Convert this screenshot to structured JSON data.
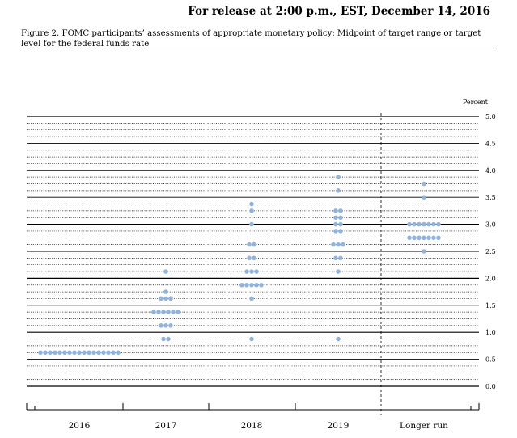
{
  "release_note": "For release at 2:00 p.m., EST, December 14, 2016",
  "figure_caption": "Figure 2. FOMC participants’ assessments of appropriate monetary policy: Midpoint of target range or target level for the federal funds rate",
  "chart_data": {
    "type": "scatter",
    "style": "dot plot",
    "ylabel": "Percent",
    "ylim": [
      0,
      5.0
    ],
    "y_ticks": [
      "0.0",
      "0.5",
      "1.0",
      "1.5",
      "2.0",
      "2.5",
      "3.0",
      "3.5",
      "4.0",
      "4.5",
      "5.0"
    ],
    "categories": [
      "2016",
      "2017",
      "2018",
      "2019",
      "Longer run"
    ],
    "dot_color": "#92b4dc",
    "grid": "solid at whole and half percents, dotted at eighth-point levels",
    "separator": "vertical dashed line before Longer run",
    "series": [
      {
        "values": [
          {
            "category": "2016",
            "y": 0.625,
            "count": 17
          },
          {
            "category": "2017",
            "y": 0.875,
            "count": 2
          },
          {
            "category": "2017",
            "y": 1.125,
            "count": 3
          },
          {
            "category": "2017",
            "y": 1.375,
            "count": 6
          },
          {
            "category": "2017",
            "y": 1.625,
            "count": 3
          },
          {
            "category": "2017",
            "y": 1.75,
            "count": 1
          },
          {
            "category": "2017",
            "y": 2.125,
            "count": 1
          },
          {
            "category": "2018",
            "y": 0.875,
            "count": 1
          },
          {
            "category": "2018",
            "y": 1.625,
            "count": 1
          },
          {
            "category": "2018",
            "y": 1.875,
            "count": 5
          },
          {
            "category": "2018",
            "y": 2.125,
            "count": 3
          },
          {
            "category": "2018",
            "y": 2.375,
            "count": 2
          },
          {
            "category": "2018",
            "y": 2.625,
            "count": 2
          },
          {
            "category": "2018",
            "y": 3.0,
            "count": 1
          },
          {
            "category": "2018",
            "y": 3.25,
            "count": 1
          },
          {
            "category": "2018",
            "y": 3.375,
            "count": 1
          },
          {
            "category": "2019",
            "y": 0.875,
            "count": 1
          },
          {
            "category": "2019",
            "y": 2.125,
            "count": 1
          },
          {
            "category": "2019",
            "y": 2.375,
            "count": 2
          },
          {
            "category": "2019",
            "y": 2.625,
            "count": 3
          },
          {
            "category": "2019",
            "y": 2.875,
            "count": 2
          },
          {
            "category": "2019",
            "y": 3.0,
            "count": 2
          },
          {
            "category": "2019",
            "y": 3.125,
            "count": 2
          },
          {
            "category": "2019",
            "y": 3.25,
            "count": 2
          },
          {
            "category": "2019",
            "y": 3.625,
            "count": 1
          },
          {
            "category": "2019",
            "y": 3.875,
            "count": 1
          },
          {
            "category": "Longer run",
            "y": 2.5,
            "count": 1
          },
          {
            "category": "Longer run",
            "y": 2.75,
            "count": 7
          },
          {
            "category": "Longer run",
            "y": 3.0,
            "count": 7
          },
          {
            "category": "Longer run",
            "y": 3.5,
            "count": 1
          },
          {
            "category": "Longer run",
            "y": 3.75,
            "count": 1
          }
        ]
      }
    ]
  }
}
